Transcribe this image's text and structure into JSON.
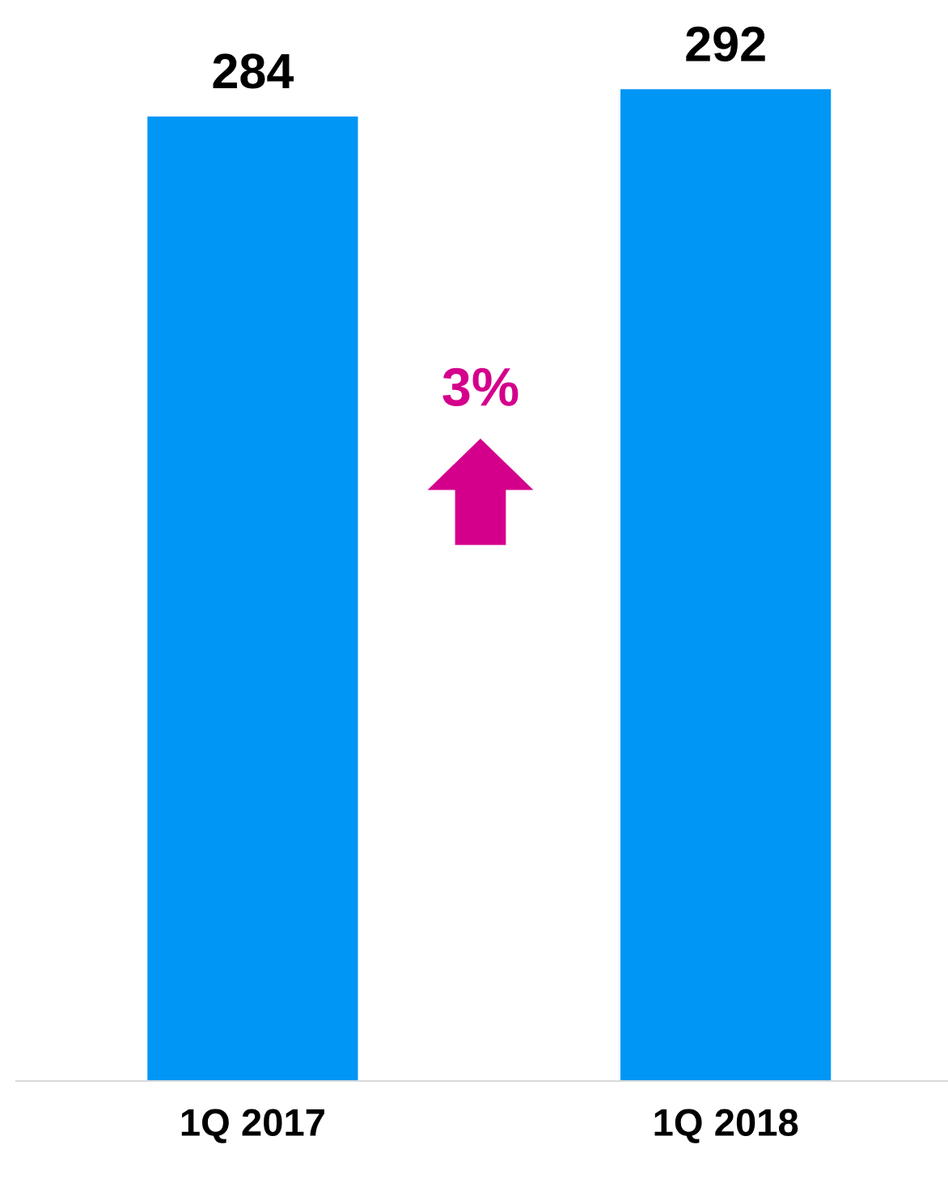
{
  "chart_data": {
    "type": "bar",
    "categories": [
      "1Q 2017",
      "1Q 2018"
    ],
    "values": [
      284,
      292
    ],
    "color": "#0096f5",
    "data_labels": true,
    "grid": false,
    "tick_labels": "x",
    "annotations": [
      "3%"
    ]
  }
}
